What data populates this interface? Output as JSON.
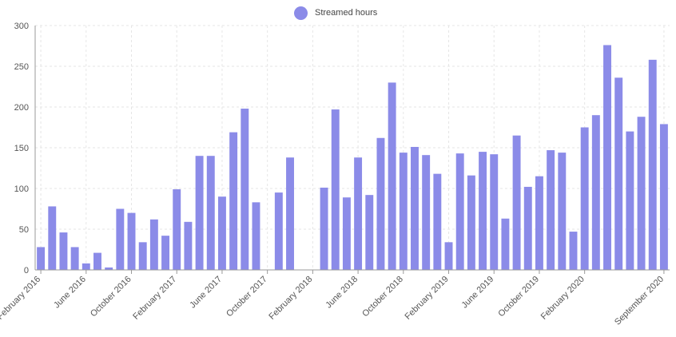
{
  "chart_data": {
    "type": "bar",
    "legend": {
      "label": "Streamed hours",
      "color": "#8b8be8",
      "placement": "top-center"
    },
    "ylim": [
      0,
      300
    ],
    "yticks": [
      0,
      50,
      100,
      150,
      200,
      250,
      300
    ],
    "grid": true,
    "bar_color": "#8b8be8",
    "xtick_labels": [
      {
        "index": 0,
        "label": "February 2016"
      },
      {
        "index": 4,
        "label": "June 2016"
      },
      {
        "index": 8,
        "label": "October 2016"
      },
      {
        "index": 12,
        "label": "February 2017"
      },
      {
        "index": 16,
        "label": "June 2017"
      },
      {
        "index": 20,
        "label": "October 2017"
      },
      {
        "index": 24,
        "label": "February 2018"
      },
      {
        "index": 28,
        "label": "June 2018"
      },
      {
        "index": 32,
        "label": "October 2018"
      },
      {
        "index": 36,
        "label": "February 2019"
      },
      {
        "index": 40,
        "label": "June 2019"
      },
      {
        "index": 44,
        "label": "October 2019"
      },
      {
        "index": 48,
        "label": "February 2020"
      },
      {
        "index": 55,
        "label": "September 2020"
      }
    ],
    "series": [
      {
        "name": "Streamed hours",
        "values": [
          28,
          78,
          46,
          28,
          8,
          21,
          3,
          75,
          70,
          34,
          62,
          42,
          99,
          59,
          140,
          140,
          90,
          169,
          198,
          83,
          0,
          95,
          138,
          0,
          0,
          101,
          197,
          89,
          138,
          92,
          162,
          230,
          144,
          151,
          141,
          118,
          34,
          143,
          116,
          145,
          142,
          63,
          165,
          102,
          115,
          147,
          144,
          47,
          175,
          190,
          276,
          236,
          170,
          188,
          258,
          179
        ]
      }
    ]
  }
}
